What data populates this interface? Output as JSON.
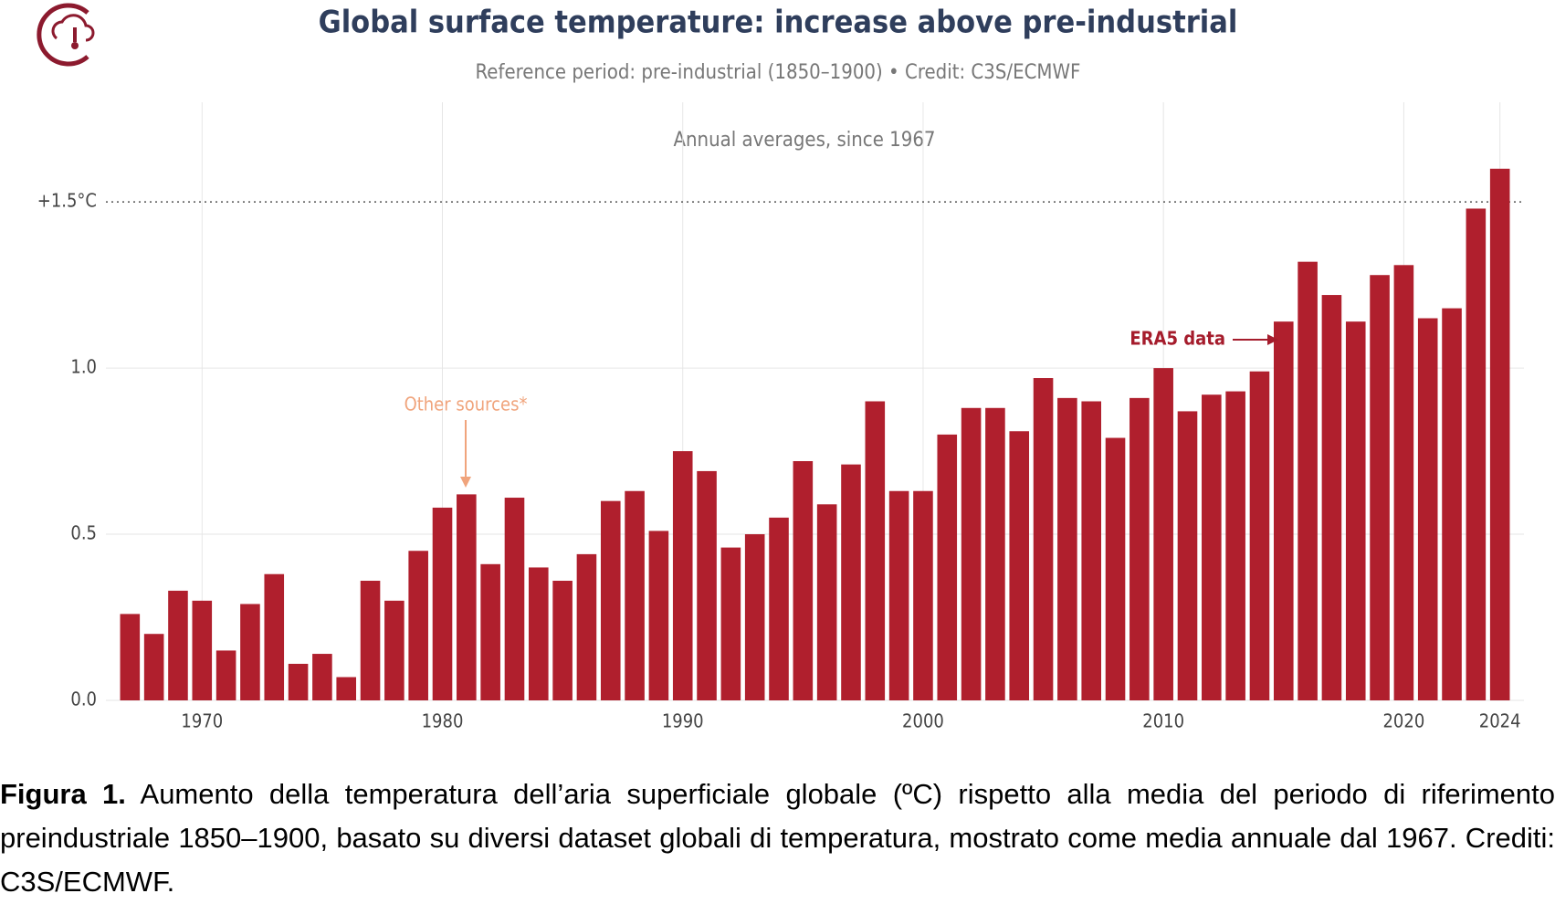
{
  "chart_data": {
    "type": "bar",
    "title": "Global surface temperature: increase above pre-industrial",
    "subtitle": "Reference period: pre-industrial (1850–1900) • Credit: C3S/ECMWF",
    "annotations": {
      "period": "Annual averages, since 1967",
      "other": "Other sources*",
      "era5": "ERA5 data"
    },
    "x": [
      1967,
      1968,
      1969,
      1970,
      1971,
      1972,
      1973,
      1974,
      1975,
      1976,
      1977,
      1978,
      1979,
      1980,
      1981,
      1982,
      1983,
      1984,
      1985,
      1986,
      1987,
      1988,
      1989,
      1990,
      1991,
      1992,
      1993,
      1994,
      1995,
      1996,
      1997,
      1998,
      1999,
      2000,
      2001,
      2002,
      2003,
      2004,
      2005,
      2006,
      2007,
      2008,
      2009,
      2010,
      2011,
      2012,
      2013,
      2014,
      2015,
      2016,
      2017,
      2018,
      2019,
      2020,
      2021,
      2022,
      2023,
      2024
    ],
    "values": [
      0.26,
      0.2,
      0.33,
      0.3,
      0.15,
      0.29,
      0.38,
      0.11,
      0.14,
      0.07,
      0.36,
      0.3,
      0.45,
      0.58,
      0.62,
      0.41,
      0.61,
      0.4,
      0.36,
      0.44,
      0.6,
      0.63,
      0.51,
      0.75,
      0.69,
      0.46,
      0.5,
      0.55,
      0.72,
      0.59,
      0.71,
      0.9,
      0.63,
      0.63,
      0.8,
      0.88,
      0.88,
      0.81,
      0.97,
      0.91,
      0.9,
      0.79,
      0.91,
      1.0,
      0.87,
      0.92,
      0.93,
      0.99,
      1.14,
      1.32,
      1.22,
      1.14,
      1.28,
      1.31,
      1.15,
      1.18,
      1.48,
      1.6
    ],
    "color": "#b01f2d",
    "xlim": [
      1966,
      2025
    ],
    "xticks": [
      1970,
      1980,
      1990,
      2000,
      2010,
      2020,
      2024
    ],
    "ylim": [
      0,
      1.8
    ],
    "yticks": [
      {
        "value": 0,
        "label": "0.0"
      },
      0.5,
      {
        "value": 1,
        "label": "1.0"
      },
      {
        "value": 1.5,
        "label": "+1.5°C"
      }
    ],
    "threshold_line": 1.5,
    "grid": true
  },
  "caption": {
    "label": "Figura 1.",
    "text": "Aumento della temperatura dell’aria superficiale globale (ºC) rispetto alla media del periodo di riferimento preindustriale 1850–1900, basato su diversi dataset globali di temperatura, mostrato come media annuale dal 1967. Crediti: C3S/ECMWF."
  }
}
